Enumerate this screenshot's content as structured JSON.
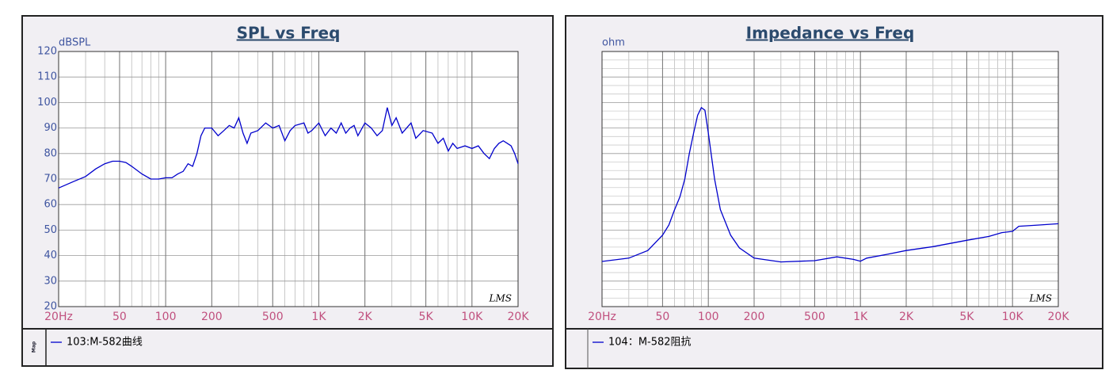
{
  "chart_data": [
    {
      "type": "line",
      "title": "SPL vs Freq",
      "y_label": "dBSPL",
      "watermark": "LMS",
      "legend_tag": "Map",
      "xscale": "log",
      "xlim": [
        20,
        20000
      ],
      "xticks": [
        {
          "value": 20,
          "label": "20Hz"
        },
        50,
        100,
        200,
        500,
        {
          "value": 1000,
          "label": "1K"
        },
        {
          "value": 2000,
          "label": "2K"
        },
        {
          "value": 5000,
          "label": "5K"
        },
        {
          "value": 10000,
          "label": "10K"
        },
        {
          "value": 20000,
          "label": "20K"
        }
      ],
      "ylim": [
        20,
        120
      ],
      "yticks": [
        20,
        30,
        40,
        50,
        60,
        70,
        80,
        90,
        100,
        110,
        120
      ],
      "grid": true,
      "x": [
        20,
        25,
        30,
        35,
        40,
        45,
        50,
        55,
        60,
        70,
        80,
        90,
        100,
        110,
        120,
        130,
        140,
        150,
        160,
        170,
        180,
        200,
        220,
        240,
        260,
        280,
        300,
        320,
        340,
        360,
        400,
        450,
        500,
        550,
        600,
        650,
        700,
        800,
        850,
        900,
        1000,
        1100,
        1200,
        1300,
        1400,
        1500,
        1600,
        1700,
        1800,
        2000,
        2200,
        2400,
        2600,
        2800,
        3000,
        3200,
        3500,
        4000,
        4300,
        4800,
        5500,
        6000,
        6500,
        7000,
        7500,
        8000,
        9000,
        10000,
        11000,
        12000,
        13000,
        14000,
        15000,
        16000,
        17000,
        18000,
        19000,
        20000
      ],
      "series": [
        {
          "name": "103:M-582曲线",
          "color": "#0000cc",
          "values": [
            66.5,
            69,
            71,
            74,
            76,
            77,
            77,
            76.5,
            75,
            72,
            70,
            70,
            70.5,
            70.5,
            72,
            73,
            76,
            75,
            80,
            87,
            90,
            90,
            87,
            89,
            91,
            90,
            94,
            88,
            84,
            88,
            89,
            92,
            90,
            91,
            85,
            89,
            91,
            92,
            88,
            89,
            92,
            87,
            90,
            88,
            92,
            88,
            90,
            91,
            87,
            92,
            90,
            87,
            89,
            98,
            91,
            94,
            88,
            92,
            86,
            89,
            88,
            84,
            86,
            81,
            84,
            82,
            83,
            82,
            83,
            80,
            78,
            82,
            84,
            85,
            84,
            83,
            80,
            76
          ]
        }
      ]
    },
    {
      "type": "line",
      "title": "Impedance vs Freq",
      "y_label": "ohm",
      "watermark": "LMS",
      "xscale": "log",
      "xlim": [
        20,
        20000
      ],
      "xticks": [
        {
          "value": 20,
          "label": "20Hz"
        },
        50,
        100,
        200,
        500,
        {
          "value": 1000,
          "label": "1K"
        },
        {
          "value": 2000,
          "label": "2K"
        },
        {
          "value": 5000,
          "label": "5K"
        },
        {
          "value": 10000,
          "label": "10K"
        },
        {
          "value": 20000,
          "label": "20K"
        }
      ],
      "ylim": [
        0,
        100
      ],
      "grid": true,
      "x": [
        20,
        30,
        40,
        50,
        55,
        60,
        65,
        70,
        75,
        80,
        85,
        90,
        95,
        100,
        110,
        120,
        140,
        160,
        200,
        300,
        500,
        700,
        900,
        1000,
        1100,
        1500,
        2000,
        3000,
        5000,
        7000,
        8500,
        10000,
        11000,
        15000,
        20000
      ],
      "series": [
        {
          "name": "104：M-582阻抗",
          "color": "#0000cc",
          "values": [
            17.7,
            19,
            22,
            28,
            32,
            38,
            43,
            50,
            60,
            68,
            75,
            78,
            77,
            68,
            50,
            38,
            28,
            23,
            19,
            17.5,
            18,
            19.5,
            18.5,
            17.8,
            19,
            20.5,
            22,
            23.5,
            26,
            27.5,
            29,
            29.5,
            31.5,
            32,
            32.5
          ]
        }
      ]
    }
  ]
}
